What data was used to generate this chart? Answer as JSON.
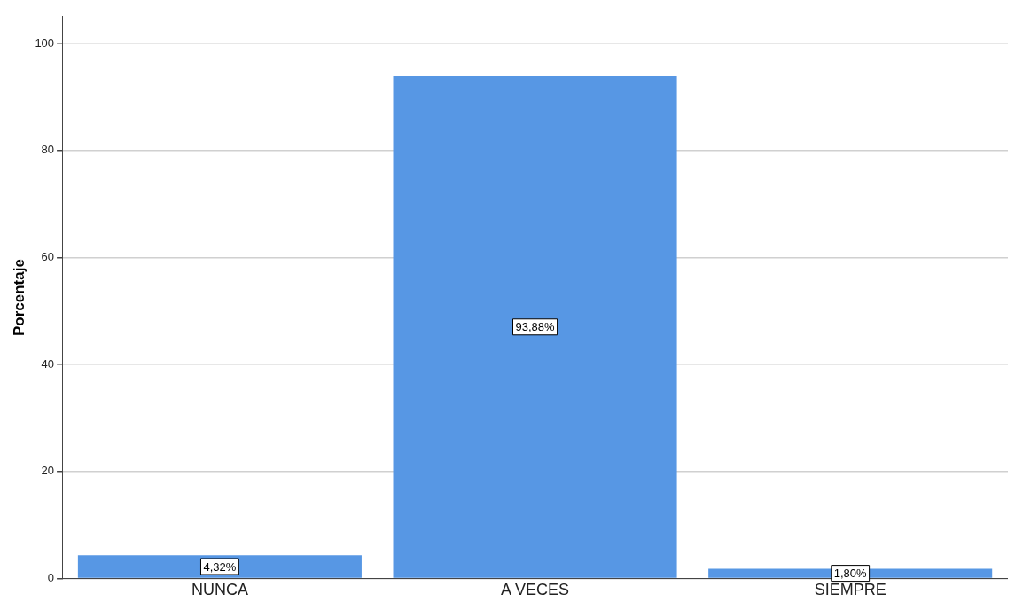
{
  "chart_data": {
    "type": "bar",
    "ylabel": "Porcentaje",
    "categories": [
      "NUNCA",
      "A VECES",
      "SIEMPRE"
    ],
    "values": [
      4.32,
      93.88,
      1.8
    ],
    "value_labels": [
      "4,32%",
      "93,88%",
      "1,80%"
    ],
    "color": "#5797e4",
    "ylim": [
      0,
      105
    ],
    "yticks": [
      0,
      20,
      40,
      60,
      80,
      100
    ],
    "grid": "y",
    "legend": false
  }
}
